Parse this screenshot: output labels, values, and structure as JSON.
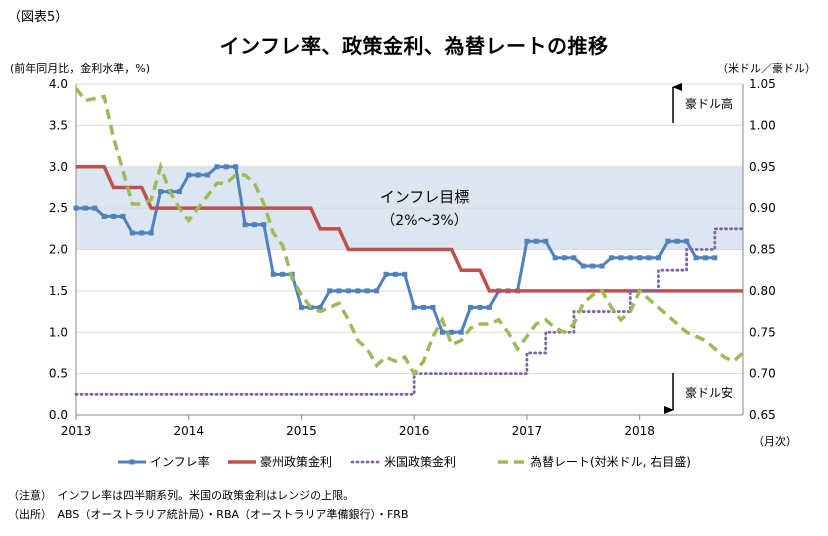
{
  "figure_label": "（図表5）",
  "title": "インフレ率、政策金利、為替レートの推移",
  "left_unit": "(前年同月比，金利水準，%)",
  "right_unit": "（米ドル／豪ドル）",
  "x_unit": "（月次）",
  "notes": [
    "（注意）　インフレ率は四半期系列。米国の政策金利はレンジの上限。",
    "（出所）　ABS（オーストラリア統計局）・RBA（オーストラリア準備銀行）・FRB"
  ],
  "colors": {
    "inflation": "#4f81bd",
    "rba": "#c0504d",
    "fed": "#8064a2",
    "fx": "#9bbb59",
    "band": "#dce6f1"
  },
  "chart_data": {
    "type": "line",
    "x_start": 2013.0,
    "x_end": 2018.917,
    "x_ticks": [
      2013,
      2014,
      2015,
      2016,
      2017,
      2018
    ],
    "x_tick_labels": [
      "2013",
      "2014",
      "2015",
      "2016",
      "2017",
      "2018"
    ],
    "ylim_left": [
      0,
      4
    ],
    "y_ticks_left": [
      "0.0",
      "0.5",
      "1.0",
      "1.5",
      "2.0",
      "2.5",
      "3.0",
      "3.5",
      "4.0"
    ],
    "ylim_right": [
      0.65,
      1.05
    ],
    "y_ticks_right": [
      "0.65",
      "0.70",
      "0.75",
      "0.80",
      "0.85",
      "0.90",
      "0.95",
      "1.00",
      "1.05"
    ],
    "target_band": {
      "label_line1": "インフレ目標",
      "label_line2": "（2%～3%）",
      "y_range": [
        2,
        3
      ]
    },
    "annotations": {
      "aud_up": "豪ドル高",
      "aud_down": "豪ドル安"
    },
    "series": [
      {
        "name": "インフレ率",
        "axis": "left",
        "style": "solid-markers",
        "values": [
          [
            2013.0,
            2.5
          ],
          [
            2013.083,
            2.5
          ],
          [
            2013.167,
            2.5
          ],
          [
            2013.25,
            2.4
          ],
          [
            2013.333,
            2.4
          ],
          [
            2013.417,
            2.4
          ],
          [
            2013.5,
            2.2
          ],
          [
            2013.583,
            2.2
          ],
          [
            2013.667,
            2.2
          ],
          [
            2013.75,
            2.7
          ],
          [
            2013.833,
            2.7
          ],
          [
            2013.917,
            2.7
          ],
          [
            2014.0,
            2.9
          ],
          [
            2014.083,
            2.9
          ],
          [
            2014.167,
            2.9
          ],
          [
            2014.25,
            3.0
          ],
          [
            2014.333,
            3.0
          ],
          [
            2014.417,
            3.0
          ],
          [
            2014.5,
            2.3
          ],
          [
            2014.583,
            2.3
          ],
          [
            2014.667,
            2.3
          ],
          [
            2014.75,
            1.7
          ],
          [
            2014.833,
            1.7
          ],
          [
            2014.917,
            1.7
          ],
          [
            2015.0,
            1.3
          ],
          [
            2015.083,
            1.3
          ],
          [
            2015.167,
            1.3
          ],
          [
            2015.25,
            1.5
          ],
          [
            2015.333,
            1.5
          ],
          [
            2015.417,
            1.5
          ],
          [
            2015.5,
            1.5
          ],
          [
            2015.583,
            1.5
          ],
          [
            2015.667,
            1.5
          ],
          [
            2015.75,
            1.7
          ],
          [
            2015.833,
            1.7
          ],
          [
            2015.917,
            1.7
          ],
          [
            2016.0,
            1.3
          ],
          [
            2016.083,
            1.3
          ],
          [
            2016.167,
            1.3
          ],
          [
            2016.25,
            1.0
          ],
          [
            2016.333,
            1.0
          ],
          [
            2016.417,
            1.0
          ],
          [
            2016.5,
            1.3
          ],
          [
            2016.583,
            1.3
          ],
          [
            2016.667,
            1.3
          ],
          [
            2016.75,
            1.5
          ],
          [
            2016.833,
            1.5
          ],
          [
            2016.917,
            1.5
          ],
          [
            2017.0,
            2.1
          ],
          [
            2017.083,
            2.1
          ],
          [
            2017.167,
            2.1
          ],
          [
            2017.25,
            1.9
          ],
          [
            2017.333,
            1.9
          ],
          [
            2017.417,
            1.9
          ],
          [
            2017.5,
            1.8
          ],
          [
            2017.583,
            1.8
          ],
          [
            2017.667,
            1.8
          ],
          [
            2017.75,
            1.9
          ],
          [
            2017.833,
            1.9
          ],
          [
            2017.917,
            1.9
          ],
          [
            2018.0,
            1.9
          ],
          [
            2018.083,
            1.9
          ],
          [
            2018.167,
            1.9
          ],
          [
            2018.25,
            2.1
          ],
          [
            2018.333,
            2.1
          ],
          [
            2018.417,
            2.1
          ],
          [
            2018.5,
            1.9
          ],
          [
            2018.583,
            1.9
          ],
          [
            2018.667,
            1.9
          ]
        ]
      },
      {
        "name": "豪州政策金利",
        "axis": "left",
        "style": "solid-thick",
        "values": [
          [
            2013.0,
            3.0
          ],
          [
            2013.25,
            3.0
          ],
          [
            2013.333,
            2.75
          ],
          [
            2013.583,
            2.75
          ],
          [
            2013.667,
            2.5
          ],
          [
            2015.083,
            2.5
          ],
          [
            2015.167,
            2.25
          ],
          [
            2015.333,
            2.25
          ],
          [
            2015.417,
            2.0
          ],
          [
            2016.333,
            2.0
          ],
          [
            2016.417,
            1.75
          ],
          [
            2016.583,
            1.75
          ],
          [
            2016.667,
            1.5
          ],
          [
            2018.917,
            1.5
          ]
        ]
      },
      {
        "name": "米国政策金利",
        "axis": "left",
        "style": "dotted",
        "values": [
          [
            2013.0,
            0.25
          ],
          [
            2015.917,
            0.25
          ],
          [
            2016.0,
            0.5
          ],
          [
            2016.917,
            0.5
          ],
          [
            2017.0,
            0.75
          ],
          [
            2017.167,
            1.0
          ],
          [
            2017.417,
            1.25
          ],
          [
            2017.917,
            1.5
          ],
          [
            2018.167,
            1.75
          ],
          [
            2018.417,
            2.0
          ],
          [
            2018.667,
            2.25
          ],
          [
            2018.917,
            2.25
          ]
        ]
      },
      {
        "name": "為替レート(対米ドル, 右目盛)",
        "axis": "right",
        "style": "dashed",
        "values": [
          [
            2013.0,
            1.045
          ],
          [
            2013.083,
            1.03
          ],
          [
            2013.25,
            1.035
          ],
          [
            2013.333,
            0.985
          ],
          [
            2013.417,
            0.945
          ],
          [
            2013.5,
            0.905
          ],
          [
            2013.583,
            0.905
          ],
          [
            2013.667,
            0.91
          ],
          [
            2013.75,
            0.95
          ],
          [
            2013.833,
            0.92
          ],
          [
            2013.917,
            0.9
          ],
          [
            2014.0,
            0.885
          ],
          [
            2014.083,
            0.9
          ],
          [
            2014.167,
            0.915
          ],
          [
            2014.25,
            0.93
          ],
          [
            2014.333,
            0.93
          ],
          [
            2014.417,
            0.94
          ],
          [
            2014.5,
            0.94
          ],
          [
            2014.583,
            0.93
          ],
          [
            2014.667,
            0.905
          ],
          [
            2014.75,
            0.87
          ],
          [
            2014.833,
            0.855
          ],
          [
            2014.917,
            0.815
          ],
          [
            2015.0,
            0.795
          ],
          [
            2015.083,
            0.78
          ],
          [
            2015.167,
            0.775
          ],
          [
            2015.25,
            0.78
          ],
          [
            2015.333,
            0.785
          ],
          [
            2015.417,
            0.765
          ],
          [
            2015.5,
            0.74
          ],
          [
            2015.583,
            0.73
          ],
          [
            2015.667,
            0.71
          ],
          [
            2015.75,
            0.72
          ],
          [
            2015.833,
            0.715
          ],
          [
            2015.917,
            0.72
          ],
          [
            2016.0,
            0.7
          ],
          [
            2016.083,
            0.715
          ],
          [
            2016.167,
            0.745
          ],
          [
            2016.25,
            0.765
          ],
          [
            2016.333,
            0.735
          ],
          [
            2016.417,
            0.74
          ],
          [
            2016.5,
            0.755
          ],
          [
            2016.583,
            0.76
          ],
          [
            2016.667,
            0.76
          ],
          [
            2016.75,
            0.765
          ],
          [
            2016.833,
            0.75
          ],
          [
            2016.917,
            0.73
          ],
          [
            2017.0,
            0.745
          ],
          [
            2017.083,
            0.76
          ],
          [
            2017.167,
            0.765
          ],
          [
            2017.25,
            0.755
          ],
          [
            2017.333,
            0.75
          ],
          [
            2017.417,
            0.76
          ],
          [
            2017.5,
            0.785
          ],
          [
            2017.583,
            0.795
          ],
          [
            2017.667,
            0.8
          ],
          [
            2017.75,
            0.78
          ],
          [
            2017.833,
            0.765
          ],
          [
            2017.917,
            0.775
          ],
          [
            2018.0,
            0.8
          ],
          [
            2018.083,
            0.79
          ],
          [
            2018.167,
            0.78
          ],
          [
            2018.25,
            0.77
          ],
          [
            2018.333,
            0.76
          ],
          [
            2018.417,
            0.75
          ],
          [
            2018.5,
            0.745
          ],
          [
            2018.583,
            0.74
          ],
          [
            2018.667,
            0.73
          ],
          [
            2018.75,
            0.72
          ],
          [
            2018.833,
            0.715
          ],
          [
            2018.917,
            0.725
          ]
        ]
      }
    ],
    "legend": [
      {
        "label": "インフレ率",
        "key": "inflation",
        "style": "solid-markers"
      },
      {
        "label": "豪州政策金利",
        "key": "rba",
        "style": "solid-thick"
      },
      {
        "label": "米国政策金利",
        "key": "fed",
        "style": "dotted"
      },
      {
        "label": "為替レート(対米ドル, 右目盛)",
        "key": "fx",
        "style": "dashed"
      }
    ]
  }
}
